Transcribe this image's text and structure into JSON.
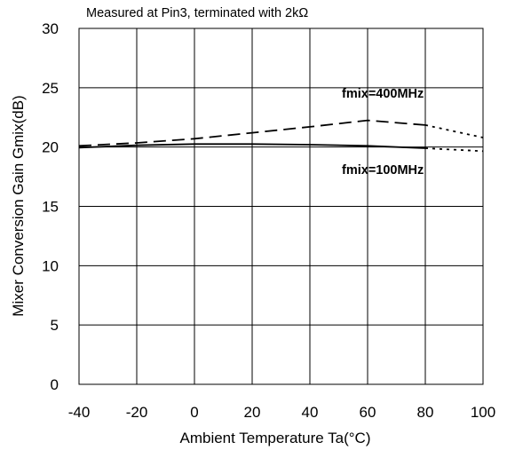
{
  "chart_data": {
    "type": "line",
    "title": "",
    "annotation": "Measured at Pin3, terminated with 2kΩ",
    "xlabel": "Ambient Temperature Ta(°C)",
    "ylabel": "Mixer Conversion Gain Gmix(dB)",
    "xlim": [
      -40,
      100
    ],
    "ylim": [
      0,
      30
    ],
    "xticks": [
      -40,
      -20,
      0,
      20,
      40,
      60,
      80,
      100
    ],
    "yticks": [
      0,
      5,
      10,
      15,
      20,
      25,
      30
    ],
    "xtick_labels": [
      "-40",
      "-20",
      "0",
      "20",
      "40",
      "60",
      "80",
      "100"
    ],
    "ytick_labels": [
      "0",
      "5",
      "10",
      "15",
      "20",
      "25",
      "30"
    ],
    "grid": true,
    "series": [
      {
        "name": "fmix=400MHz",
        "style": "dashed",
        "x": [
          -40,
          -20,
          0,
          20,
          40,
          60,
          80
        ],
        "y": [
          20.1,
          20.35,
          20.7,
          21.2,
          21.7,
          22.25,
          21.85
        ],
        "extrapolated": {
          "style": "dotted",
          "x": [
            80,
            100
          ],
          "y": [
            21.85,
            20.8
          ]
        }
      },
      {
        "name": "fmix=100MHz",
        "style": "solid",
        "x": [
          -40,
          -20,
          0,
          20,
          40,
          60,
          80
        ],
        "y": [
          19.95,
          20.15,
          20.25,
          20.25,
          20.2,
          20.1,
          19.9
        ],
        "extrapolated": {
          "style": "dotted",
          "x": [
            80,
            100
          ],
          "y": [
            19.9,
            19.65
          ]
        }
      }
    ],
    "series_labels": [
      "fmix=400MHz",
      "fmix=100MHz"
    ]
  }
}
